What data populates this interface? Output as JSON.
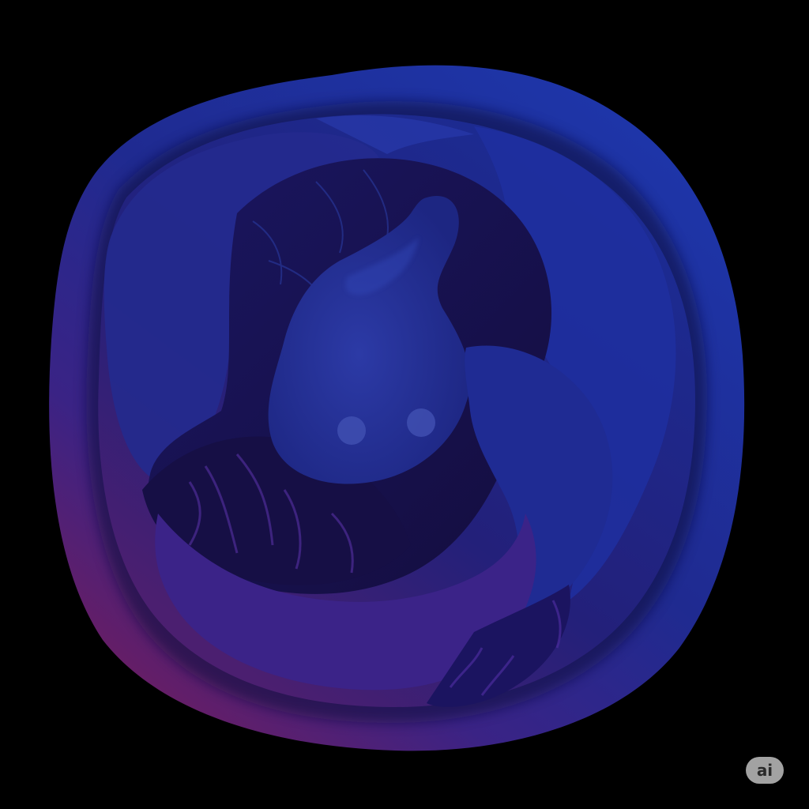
{
  "badge": {
    "label": "ai"
  },
  "colors": {
    "background": "#000000",
    "blob_blue": "#1f2f9a",
    "blob_deep_blue": "#131d6e",
    "blob_purple": "#5a2078",
    "blob_magenta": "#6a1d63",
    "inner_dark": "#170f4a",
    "accent_light": "#3b4bbf",
    "eye": "#3f4fb0"
  }
}
